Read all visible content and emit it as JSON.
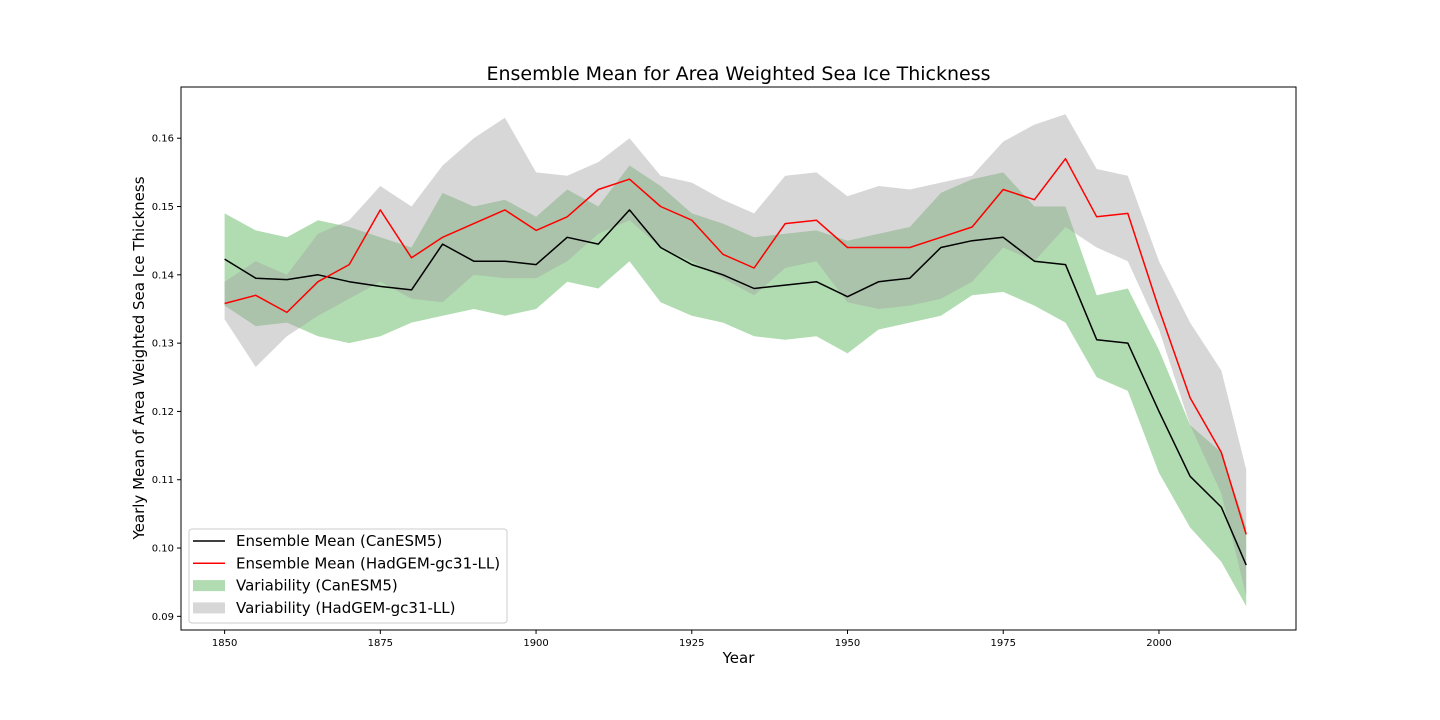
{
  "chart_data": {
    "type": "line",
    "title": "Ensemble Mean for Area Weighted Sea Ice Thickness",
    "xlabel": "Year",
    "ylabel": "Yearly Mean of Area Weighted Sea Ice Thickness",
    "xlim": [
      1843,
      2022
    ],
    "ylim": [
      0.088,
      0.1675
    ],
    "xticks": [
      1850,
      1875,
      1900,
      1925,
      1950,
      1975,
      2000
    ],
    "yticks": [
      0.09,
      0.1,
      0.11,
      0.12,
      0.13,
      0.14,
      0.15,
      0.16
    ],
    "xtick_labels": [
      "1850",
      "1875",
      "1900",
      "1925",
      "1950",
      "1975",
      "2000"
    ],
    "ytick_labels": [
      "0.09",
      "0.10",
      "0.11",
      "0.12",
      "0.13",
      "0.14",
      "0.15",
      "0.16"
    ],
    "grid": false,
    "legend_position": "lower-left",
    "legend": [
      {
        "label": "Ensemble Mean (CanESM5)",
        "kind": "line",
        "color": "#000000"
      },
      {
        "label": "Ensemble Mean (HadGEM-gc31-LL)",
        "kind": "line",
        "color": "#ff0000"
      },
      {
        "label": "Variability (CanESM5)",
        "kind": "band",
        "color": "#2ca02c"
      },
      {
        "label": "Variability (HadGEM-gc31-LL)",
        "kind": "band",
        "color": "#a0a0a0"
      }
    ],
    "x": [
      1850,
      1855,
      1860,
      1865,
      1870,
      1875,
      1880,
      1885,
      1890,
      1895,
      1900,
      1905,
      1910,
      1915,
      1920,
      1925,
      1930,
      1935,
      1940,
      1945,
      1950,
      1955,
      1960,
      1965,
      1970,
      1975,
      1980,
      1985,
      1990,
      1995,
      2000,
      2005,
      2010,
      2014
    ],
    "series": [
      {
        "name": "Ensemble Mean (CanESM5)",
        "color": "#000000",
        "values": [
          0.1423,
          0.1395,
          0.1393,
          0.14,
          0.139,
          0.1383,
          0.1378,
          0.1445,
          0.142,
          0.142,
          0.1415,
          0.1455,
          0.1445,
          0.1495,
          0.144,
          0.1415,
          0.14,
          0.138,
          0.1385,
          0.139,
          0.1368,
          0.139,
          0.1395,
          0.144,
          0.145,
          0.1455,
          0.142,
          0.1415,
          0.1305,
          0.13,
          0.12,
          0.1105,
          0.106,
          0.0975
        ]
      },
      {
        "name": "Ensemble Mean (HadGEM-gc31-LL)",
        "color": "#ff0000",
        "values": [
          0.1358,
          0.137,
          0.1345,
          0.139,
          0.1415,
          0.1495,
          0.1425,
          0.1455,
          0.1475,
          0.1495,
          0.1465,
          0.1485,
          0.1525,
          0.154,
          0.15,
          0.148,
          0.143,
          0.141,
          0.1475,
          0.148,
          0.144,
          0.144,
          0.144,
          0.1455,
          0.147,
          0.1525,
          0.151,
          0.157,
          0.1485,
          0.149,
          0.135,
          0.122,
          0.114,
          0.102
        ]
      }
    ],
    "bands": [
      {
        "name": "Variability (CanESM5)",
        "color": "#2ca02c",
        "opacity": 0.37,
        "lower": [
          0.1355,
          0.1325,
          0.133,
          0.131,
          0.13,
          0.131,
          0.133,
          0.134,
          0.135,
          0.134,
          0.135,
          0.139,
          0.138,
          0.142,
          0.136,
          0.134,
          0.133,
          0.131,
          0.1305,
          0.131,
          0.1285,
          0.132,
          0.133,
          0.134,
          0.137,
          0.1375,
          0.1355,
          0.133,
          0.125,
          0.123,
          0.111,
          0.103,
          0.098,
          0.0915
        ],
        "upper": [
          0.149,
          0.1465,
          0.1455,
          0.148,
          0.147,
          0.1455,
          0.144,
          0.152,
          0.15,
          0.151,
          0.1485,
          0.1525,
          0.15,
          0.156,
          0.153,
          0.149,
          0.1475,
          0.1455,
          0.146,
          0.1465,
          0.145,
          0.146,
          0.147,
          0.152,
          0.154,
          0.155,
          0.15,
          0.15,
          0.137,
          0.138,
          0.129,
          0.118,
          0.114,
          0.103
        ]
      },
      {
        "name": "Variability (HadGEM-gc31-LL)",
        "color": "#a0a0a0",
        "opacity": 0.42,
        "lower": [
          0.1335,
          0.1265,
          0.131,
          0.134,
          0.1365,
          0.139,
          0.1365,
          0.136,
          0.14,
          0.1395,
          0.1395,
          0.142,
          0.146,
          0.148,
          0.144,
          0.142,
          0.1395,
          0.137,
          0.141,
          0.142,
          0.136,
          0.135,
          0.1355,
          0.1365,
          0.139,
          0.144,
          0.142,
          0.147,
          0.144,
          0.142,
          0.132,
          0.118,
          0.108,
          0.093
        ],
        "upper": [
          0.139,
          0.142,
          0.14,
          0.146,
          0.148,
          0.153,
          0.15,
          0.156,
          0.16,
          0.163,
          0.155,
          0.1545,
          0.1565,
          0.16,
          0.1545,
          0.1535,
          0.151,
          0.149,
          0.1545,
          0.155,
          0.1515,
          0.153,
          0.1525,
          0.1535,
          0.1545,
          0.1595,
          0.162,
          0.1635,
          0.1555,
          0.1545,
          0.142,
          0.133,
          0.126,
          0.1115
        ]
      }
    ]
  }
}
